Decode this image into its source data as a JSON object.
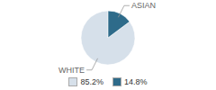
{
  "chart_data": {
    "type": "pie",
    "categories": [
      "WHITE",
      "ASIAN"
    ],
    "values": [
      85.2,
      14.8
    ],
    "value_labels": [
      "85.2%",
      "14.8%"
    ],
    "colors": [
      "#d6e0ea",
      "#2e6b8a"
    ],
    "legend": "bottom"
  }
}
